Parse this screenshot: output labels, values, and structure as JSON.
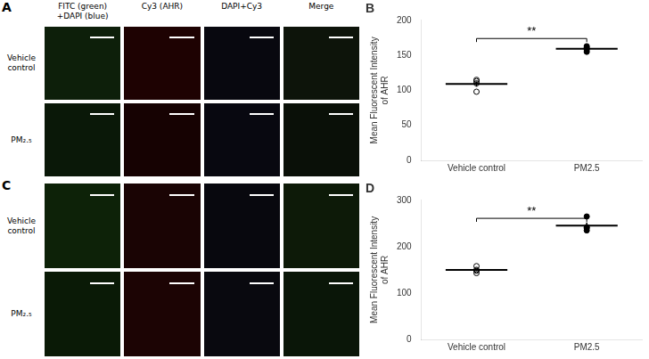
{
  "chart_data": [
    {
      "type": "image_grid",
      "title": "A",
      "categories": [
        "FITC (green)\n+DAPI (blue)",
        "Cy3 (AHR)",
        "DAPI+Cy3",
        "Merge"
      ],
      "series": [
        {
          "name": "Vehicle\ncontrol",
          "colors": [
            "#0d1f0a",
            "#1e0202",
            "#08080f",
            "#0d140a"
          ]
        },
        {
          "name": "PM₂.₅",
          "colors": [
            "#0a1808",
            "#160202",
            "#080810",
            "#0a1008"
          ]
        }
      ]
    },
    {
      "type": "scatter",
      "title": "B",
      "categories": [
        "Vehicle control",
        "PM2.5"
      ],
      "values": [
        [
          110,
          115,
          98,
          113
        ],
        [
          158,
          163,
          155,
          161
        ]
      ],
      "means": [
        109,
        159.25
      ],
      "sem": [
        3.807887,
        1.75
      ],
      "markers": [
        "circle-open",
        "circle"
      ],
      "color": "#000000",
      "ylabel": "Mean Fluorescent Intensity\nof AHR",
      "ylim": [
        0,
        200
      ],
      "yticks": [
        0,
        50,
        100,
        150,
        200
      ],
      "grid": false,
      "annotations": [
        {
          "text": "**",
          "x": [
            "Vehicle control",
            "PM2.5"
          ],
          "y": 174
        }
      ]
    },
    {
      "type": "image_grid",
      "title": "C",
      "series": [
        {
          "name": "Vehicle\ncontrol",
          "colors": [
            "#0d2208",
            "#1a0404",
            "#08080e",
            "#0d1a08"
          ]
        },
        {
          "name": "PM₂.₅",
          "colors": [
            "#0a1a06",
            "#1c0404",
            "#09090f",
            "#0a1608"
          ]
        }
      ]
    },
    {
      "type": "scatter",
      "title": "D",
      "categories": [
        "Vehicle control",
        "PM2.5"
      ],
      "values": [
        [
          150,
          158,
          143,
          148
        ],
        [
          265,
          240,
          235,
          242
        ]
      ],
      "means": [
        149.75,
        245.5
      ],
      "sem": [
        3.119161,
        6.664583
      ],
      "markers": [
        "circle-open",
        "circle"
      ],
      "color": "#000000",
      "ylabel": "Mean Fluorescent Intensity\nof AHR",
      "ylim": [
        0,
        300
      ],
      "yticks": [
        0,
        100,
        200,
        300
      ],
      "grid": false,
      "annotations": [
        {
          "text": "**",
          "x": [
            "Vehicle control",
            "PM2.5"
          ],
          "y": 261
        }
      ]
    }
  ]
}
